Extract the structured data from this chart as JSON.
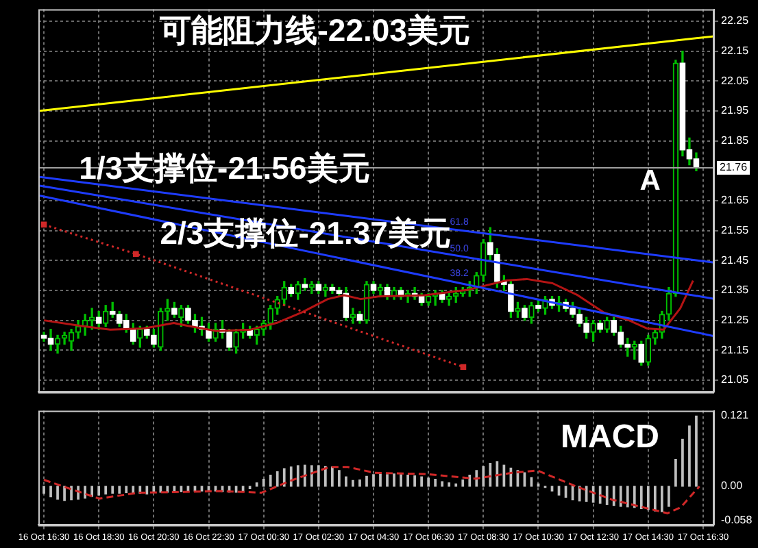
{
  "chart_data": [
    {
      "type": "candlestick",
      "xlim": [
        "--10-16T16:18",
        "--10-17T16:54"
      ],
      "ylim": [
        21.01,
        22.29
      ],
      "xticks": [
        {
          "value": "--10-16T16:30",
          "label": null
        },
        {
          "value": "--10-16T18:30",
          "label": null
        },
        {
          "value": "--10-16T20:30",
          "label": null
        },
        {
          "value": "--10-16T22:30",
          "label": null
        },
        {
          "value": "--10-17T00:30",
          "label": null
        },
        {
          "value": "--10-17T02:30",
          "label": null
        },
        {
          "value": "--10-17T04:30",
          "label": null
        },
        {
          "value": "--10-17T06:30",
          "label": null
        },
        {
          "value": "--10-17T08:30",
          "label": null
        },
        {
          "value": "--10-17T10:30",
          "label": null
        },
        {
          "value": "--10-17T12:30",
          "label": null
        },
        {
          "value": "--10-17T14:30",
          "label": null
        },
        {
          "value": "--10-17T16:30",
          "label": null
        }
      ],
      "yticks": [
        21.05,
        21.15,
        21.25,
        21.35,
        21.45,
        21.55,
        21.65,
        21.85,
        21.95,
        22.05,
        22.15,
        22.25
      ],
      "tick_labels": "y",
      "grid": true,
      "ref_lines": [
        {
          "axis": "y",
          "value": 21.76,
          "label": "21.76",
          "color": "#a0a0a0"
        }
      ],
      "annotations": [
        "可能阻力线-22.03美元",
        "1/3支撑位-21.56美元",
        "2/3支撑位-21.37美元",
        "A",
        {
          "text": "61.8",
          "x": "--10-17T07:17",
          "y": 21.579
        },
        {
          "text": "50.0",
          "x": "--10-17T07:17",
          "y": 21.49
        },
        {
          "text": "38.2",
          "x": "--10-17T07:17",
          "y": 21.406
        }
      ],
      "series": [
        {
          "color": "#00c000",
          "colors": [
            "#ffffff",
            "#ffffff",
            "#00c000",
            "#00c000",
            "#00c000",
            "#00c000",
            "#00c000",
            "#00c000",
            "#ffffff",
            "#00c000",
            "#ffffff",
            "#ffffff",
            "#ffffff",
            "#ffffff",
            "#00c000",
            "#ffffff",
            "#ffffff",
            "#00c000",
            "#00c000",
            "#ffffff",
            "#00c000",
            "#ffffff",
            "#ffffff",
            "#ffffff",
            "#ffffff",
            "#00c000",
            "#ffffff",
            "#ffffff",
            "#00c000",
            "#00c000",
            "#ffffff",
            "#00c000",
            "#00c000",
            "#00c000",
            "#00c000",
            "#00c000",
            "#ffffff",
            "#00c000",
            "#ffffff",
            "#00c000",
            "#ffffff",
            "#00c000",
            "#ffffff",
            "#ffffff",
            "#ffffff",
            "#00c000",
            "#ffffff",
            "#00c000",
            "#ffffff",
            "#00c000",
            "#ffffff",
            "#00c000",
            "#ffffff",
            "#00c000",
            "#ffffff",
            "#ffffff",
            "#00c000",
            "#00c000",
            "#ffffff",
            "#00c000",
            "#00c000",
            "#00c000",
            "#00c000",
            "#00c000",
            "#00c000",
            "#ffffff",
            "#ffffff",
            "#ffffff",
            "#ffffff",
            "#00c000",
            "#ffffff",
            "#00c000",
            "#ffffff",
            "#00c000",
            "#ffffff",
            "#00c000",
            "#ffffff",
            "#ffffff",
            "#ffffff",
            "#ffffff",
            "#00c000",
            "#ffffff",
            "#00c000",
            "#ffffff",
            "#ffffff",
            "#ffffff",
            "#00c000",
            "#ffffff",
            "#00c000",
            "#00c000",
            "#00c000",
            "#00c000",
            "#00c000",
            "#ffffff",
            "#ffffff",
            "#ffffff"
          ],
          "x": [
            "--10-16T16:30",
            "--10-16T16:45",
            "--10-16T17:00",
            "--10-16T17:15",
            "--10-16T17:30",
            "--10-16T17:45",
            "--10-16T18:00",
            "--10-16T18:15",
            "--10-16T18:30",
            "--10-16T18:45",
            "--10-16T19:00",
            "--10-16T19:15",
            "--10-16T19:30",
            "--10-16T19:45",
            "--10-16T20:00",
            "--10-16T20:15",
            "--10-16T20:30",
            "--10-16T20:45",
            "--10-16T21:00",
            "--10-16T21:15",
            "--10-16T21:30",
            "--10-16T21:45",
            "--10-16T22:00",
            "--10-16T22:15",
            "--10-16T22:30",
            "--10-16T22:45",
            "--10-16T23:00",
            "--10-16T23:15",
            "--10-16T23:30",
            "--10-16T23:45",
            "--10-17T00:00",
            "--10-17T00:15",
            "--10-17T00:30",
            "--10-17T00:45",
            "--10-17T01:00",
            "--10-17T01:15",
            "--10-17T01:30",
            "--10-17T01:45",
            "--10-17T02:00",
            "--10-17T02:15",
            "--10-17T02:30",
            "--10-17T02:45",
            "--10-17T03:00",
            "--10-17T03:15",
            "--10-17T03:30",
            "--10-17T03:45",
            "--10-17T04:00",
            "--10-17T04:15",
            "--10-17T04:30",
            "--10-17T04:45",
            "--10-17T05:00",
            "--10-17T05:15",
            "--10-17T05:30",
            "--10-17T05:45",
            "--10-17T06:00",
            "--10-17T06:15",
            "--10-17T06:30",
            "--10-17T06:45",
            "--10-17T07:00",
            "--10-17T07:15",
            "--10-17T07:30",
            "--10-17T07:45",
            "--10-17T08:00",
            "--10-17T08:15",
            "--10-17T08:30",
            "--10-17T08:45",
            "--10-17T09:00",
            "--10-17T09:15",
            "--10-17T09:30",
            "--10-17T09:45",
            "--10-17T10:00",
            "--10-17T10:15",
            "--10-17T10:30",
            "--10-17T10:45",
            "--10-17T11:00",
            "--10-17T11:15",
            "--10-17T11:30",
            "--10-17T11:45",
            "--10-17T12:00",
            "--10-17T12:15",
            "--10-17T12:30",
            "--10-17T12:45",
            "--10-17T13:00",
            "--10-17T13:15",
            "--10-17T13:30",
            "--10-17T13:45",
            "--10-17T14:00",
            "--10-17T14:15",
            "--10-17T14:30",
            "--10-17T14:45",
            "--10-17T15:00",
            "--10-17T15:15",
            "--10-17T15:30",
            "--10-17T15:45",
            "--10-17T16:00",
            "--10-17T16:15"
          ],
          "ohlc": [
            [
              21.2,
              21.21,
              21.18,
              21.19
            ],
            [
              21.19,
              21.22,
              21.15,
              21.17
            ],
            [
              21.17,
              21.2,
              21.14,
              21.19
            ],
            [
              21.19,
              21.21,
              21.17,
              21.2
            ],
            [
              21.18,
              21.22,
              21.15,
              21.21
            ],
            [
              21.21,
              21.25,
              21.19,
              21.23
            ],
            [
              21.23,
              21.27,
              21.2,
              21.25
            ],
            [
              21.25,
              21.29,
              21.22,
              21.26
            ],
            [
              21.26,
              21.28,
              21.22,
              21.24
            ],
            [
              21.24,
              21.3,
              21.23,
              21.28
            ],
            [
              21.28,
              21.31,
              21.26,
              21.27
            ],
            [
              21.27,
              21.28,
              21.23,
              21.24
            ],
            [
              21.25,
              21.27,
              21.21,
              21.22
            ],
            [
              21.22,
              21.24,
              21.17,
              21.18
            ],
            [
              21.19,
              21.23,
              21.16,
              21.22
            ],
            [
              21.22,
              21.23,
              21.19,
              21.2
            ],
            [
              21.2,
              21.22,
              21.16,
              21.17
            ],
            [
              21.16,
              21.29,
              21.15,
              21.28
            ],
            [
              21.28,
              21.32,
              21.25,
              21.29
            ],
            [
              21.29,
              21.31,
              21.26,
              21.27
            ],
            [
              21.26,
              21.3,
              21.23,
              21.29
            ],
            [
              21.29,
              21.3,
              21.24,
              21.25
            ],
            [
              21.25,
              21.27,
              21.21,
              21.23
            ],
            [
              21.23,
              21.26,
              21.2,
              21.22
            ],
            [
              21.22,
              21.24,
              21.18,
              21.19
            ],
            [
              21.19,
              21.24,
              21.18,
              21.22
            ],
            [
              21.22,
              21.25,
              21.19,
              21.21
            ],
            [
              21.21,
              21.22,
              21.15,
              21.16
            ],
            [
              21.16,
              21.22,
              21.14,
              21.21
            ],
            [
              21.21,
              21.24,
              21.19,
              21.22
            ],
            [
              21.22,
              21.23,
              21.19,
              21.2
            ],
            [
              21.2,
              21.23,
              21.17,
              21.22
            ],
            [
              21.22,
              21.25,
              21.2,
              21.24
            ],
            [
              21.24,
              21.3,
              21.22,
              21.29
            ],
            [
              21.29,
              21.33,
              21.27,
              21.32
            ],
            [
              21.32,
              21.38,
              21.3,
              21.36
            ],
            [
              21.36,
              21.37,
              21.33,
              21.34
            ],
            [
              21.34,
              21.38,
              21.32,
              21.37
            ],
            [
              21.37,
              21.39,
              21.35,
              21.36
            ],
            [
              21.36,
              21.38,
              21.34,
              21.37
            ],
            [
              21.37,
              21.38,
              21.34,
              21.35
            ],
            [
              21.35,
              21.37,
              21.33,
              21.36
            ],
            [
              21.36,
              21.37,
              21.34,
              21.35
            ],
            [
              21.35,
              21.36,
              21.33,
              21.34
            ],
            [
              21.34,
              21.36,
              21.25,
              21.26
            ],
            [
              21.26,
              21.29,
              21.24,
              21.27
            ],
            [
              21.27,
              21.28,
              21.24,
              21.25
            ],
            [
              21.25,
              21.38,
              21.24,
              21.37
            ],
            [
              21.37,
              21.38,
              21.34,
              21.35
            ],
            [
              21.35,
              21.37,
              21.33,
              21.36
            ],
            [
              21.36,
              21.37,
              21.32,
              21.33
            ],
            [
              21.33,
              21.36,
              21.32,
              21.35
            ],
            [
              21.35,
              21.36,
              21.32,
              21.33
            ],
            [
              21.33,
              21.35,
              21.31,
              21.34
            ],
            [
              21.34,
              21.36,
              21.32,
              21.33
            ],
            [
              21.33,
              21.34,
              21.3,
              21.31
            ],
            [
              21.31,
              21.34,
              21.3,
              21.33
            ],
            [
              21.33,
              21.35,
              21.3,
              21.34
            ],
            [
              21.34,
              21.35,
              21.31,
              21.32
            ],
            [
              21.32,
              21.34,
              21.3,
              21.33
            ],
            [
              21.33,
              21.36,
              21.31,
              21.34
            ],
            [
              21.34,
              21.36,
              21.33,
              21.35
            ],
            [
              21.35,
              21.38,
              21.33,
              21.36
            ],
            [
              21.36,
              21.41,
              21.34,
              21.4
            ],
            [
              21.4,
              21.52,
              21.38,
              21.51
            ],
            [
              21.51,
              21.56,
              21.45,
              21.47
            ],
            [
              21.47,
              21.49,
              21.36,
              21.38
            ],
            [
              21.38,
              21.4,
              21.35,
              21.37
            ],
            [
              21.37,
              21.38,
              21.26,
              21.28
            ],
            [
              21.28,
              21.31,
              21.26,
              21.29
            ],
            [
              21.29,
              21.3,
              21.25,
              21.26
            ],
            [
              21.26,
              21.31,
              21.24,
              21.3
            ],
            [
              21.3,
              21.32,
              21.28,
              21.29
            ],
            [
              21.29,
              21.33,
              21.27,
              21.32
            ],
            [
              21.32,
              21.33,
              21.29,
              21.3
            ],
            [
              21.3,
              21.33,
              21.28,
              21.31
            ],
            [
              21.31,
              21.32,
              21.28,
              21.29
            ],
            [
              21.29,
              21.31,
              21.26,
              21.27
            ],
            [
              21.27,
              21.29,
              21.23,
              21.24
            ],
            [
              21.24,
              21.26,
              21.19,
              21.21
            ],
            [
              21.21,
              21.25,
              21.18,
              21.24
            ],
            [
              21.24,
              21.25,
              21.21,
              21.22
            ],
            [
              21.22,
              21.26,
              21.21,
              21.25
            ],
            [
              21.25,
              21.26,
              21.2,
              21.21
            ],
            [
              21.21,
              21.23,
              21.16,
              21.17
            ],
            [
              21.17,
              21.19,
              21.13,
              21.16
            ],
            [
              21.16,
              21.18,
              21.12,
              21.17
            ],
            [
              21.17,
              21.18,
              21.1,
              21.11
            ],
            [
              21.11,
              21.2,
              21.1,
              21.19
            ],
            [
              21.19,
              21.22,
              21.17,
              21.21
            ],
            [
              21.21,
              21.28,
              21.19,
              21.27
            ],
            [
              21.27,
              21.36,
              21.25,
              21.34
            ],
            [
              21.34,
              22.12,
              21.33,
              22.11
            ],
            [
              22.11,
              22.15,
              21.8,
              21.82
            ],
            [
              21.82,
              21.86,
              21.77,
              21.79
            ],
            [
              21.79,
              21.81,
              21.75,
              21.76
            ]
          ]
        },
        {
          "type": "line",
          "color": "#ffff00",
          "x": [
            "--10-16T16:18",
            "--10-17T16:54"
          ],
          "values": [
            21.95,
            22.2
          ]
        },
        {
          "type": "line",
          "color": "#1e3cff",
          "x": [
            "--10-16T16:18",
            "--10-17T16:54"
          ],
          "values": [
            21.73,
            21.443
          ]
        },
        {
          "type": "line",
          "color": "#1e3cff",
          "x": [
            "--10-16T16:18",
            "--10-17T16:54"
          ],
          "values": [
            21.701,
            21.322
          ]
        },
        {
          "type": "line",
          "color": "#1e3cff",
          "x": [
            "--10-16T16:18",
            "--10-17T16:54"
          ],
          "values": [
            21.668,
            21.197
          ]
        },
        {
          "type": "line",
          "color": "#d02828",
          "line_style": "dotted",
          "marker": "square",
          "x": [
            "--10-16T16:30",
            "--10-16T19:51",
            "--10-17T07:46"
          ],
          "values": [
            21.57,
            21.472,
            21.094
          ]
        },
        {
          "type": "line",
          "color": "#b41414",
          "x": [
            "--10-16T16:30",
            "--10-16T17:48",
            "--10-16T18:55",
            "--10-16T20:08",
            "--10-16T21:14",
            "--10-16T21:43",
            "--10-16T22:47",
            "--10-17T00:02",
            "--10-17T00:58",
            "--10-17T01:54",
            "--10-17T02:50",
            "--10-17T03:26",
            "--10-17T04:02",
            "--10-17T04:41",
            "--10-17T06:22",
            "--10-17T07:56",
            "--10-17T09:20",
            "--10-17T10:05",
            "--10-17T11:01",
            "--10-17T11:56",
            "--10-17T12:52",
            "--10-17T13:48",
            "--10-17T14:27",
            "--10-17T15:04",
            "--10-17T15:40",
            "--10-17T16:08"
          ],
          "values": [
            21.25,
            21.232,
            21.219,
            21.223,
            21.241,
            21.232,
            21.214,
            21.219,
            21.241,
            21.277,
            21.321,
            21.334,
            21.321,
            21.33,
            21.334,
            21.352,
            21.383,
            21.388,
            21.374,
            21.334,
            21.277,
            21.25,
            21.223,
            21.219,
            21.29,
            21.383
          ]
        }
      ]
    },
    {
      "type": "bar",
      "title": "MACD",
      "xlim": [
        "--10-16T16:18",
        "--10-17T16:54"
      ],
      "ylim": [
        -0.066,
        0.129
      ],
      "xticks": [
        {
          "value": "--10-16T16:30",
          "label": "16 Oct 16:30"
        },
        {
          "value": "--10-16T18:30",
          "label": "16 Oct 18:30"
        },
        {
          "value": "--10-16T20:30",
          "label": "16 Oct 20:30"
        },
        {
          "value": "--10-16T22:30",
          "label": "16 Oct 22:30"
        },
        {
          "value": "--10-17T00:30",
          "label": "17 Oct 00:30"
        },
        {
          "value": "--10-17T02:30",
          "label": "17 Oct 02:30"
        },
        {
          "value": "--10-17T04:30",
          "label": "17 Oct 04:30"
        },
        {
          "value": "--10-17T06:30",
          "label": "17 Oct 06:30"
        },
        {
          "value": "--10-17T08:30",
          "label": "17 Oct 08:30"
        },
        {
          "value": "--10-17T10:30",
          "label": "17 Oct 10:30"
        },
        {
          "value": "--10-17T12:30",
          "label": "17 Oct 12:30"
        },
        {
          "value": "--10-17T14:30",
          "label": "17 Oct 14:30"
        },
        {
          "value": "--10-17T16:30",
          "label": "17 Oct 16:30"
        }
      ],
      "yticks": [
        0.121,
        {
          "value": 0,
          "label": "0.00"
        },
        -0.058
      ],
      "grid": "x",
      "series": [
        {
          "color": "#c0c0c0",
          "x": [
            "--10-16T16:30",
            "--10-16T16:45",
            "--10-16T17:00",
            "--10-16T17:15",
            "--10-16T17:30",
            "--10-16T17:45",
            "--10-16T18:00",
            "--10-16T18:15",
            "--10-16T18:30",
            "--10-16T18:45",
            "--10-16T19:00",
            "--10-16T19:15",
            "--10-16T19:30",
            "--10-16T19:45",
            "--10-16T20:00",
            "--10-16T20:15",
            "--10-16T20:30",
            "--10-16T20:45",
            "--10-16T21:00",
            "--10-16T21:15",
            "--10-16T21:30",
            "--10-16T21:45",
            "--10-16T22:00",
            "--10-16T22:15",
            "--10-16T22:30",
            "--10-16T22:45",
            "--10-16T23:00",
            "--10-16T23:15",
            "--10-16T23:30",
            "--10-16T23:45",
            "--10-17T00:00",
            "--10-17T00:15",
            "--10-17T00:30",
            "--10-17T00:45",
            "--10-17T01:00",
            "--10-17T01:15",
            "--10-17T01:30",
            "--10-17T01:45",
            "--10-17T02:00",
            "--10-17T02:15",
            "--10-17T02:30",
            "--10-17T02:45",
            "--10-17T03:00",
            "--10-17T03:15",
            "--10-17T03:30",
            "--10-17T03:45",
            "--10-17T04:00",
            "--10-17T04:15",
            "--10-17T04:30",
            "--10-17T04:45",
            "--10-17T05:00",
            "--10-17T05:15",
            "--10-17T05:30",
            "--10-17T05:45",
            "--10-17T06:00",
            "--10-17T06:15",
            "--10-17T06:30",
            "--10-17T06:45",
            "--10-17T07:00",
            "--10-17T07:15",
            "--10-17T07:30",
            "--10-17T07:45",
            "--10-17T08:00",
            "--10-17T08:15",
            "--10-17T08:30",
            "--10-17T08:45",
            "--10-17T09:00",
            "--10-17T09:15",
            "--10-17T09:30",
            "--10-17T09:45",
            "--10-17T10:00",
            "--10-17T10:15",
            "--10-17T10:30",
            "--10-17T10:45",
            "--10-17T11:00",
            "--10-17T11:15",
            "--10-17T11:30",
            "--10-17T11:45",
            "--10-17T12:00",
            "--10-17T12:15",
            "--10-17T12:30",
            "--10-17T12:45",
            "--10-17T13:00",
            "--10-17T13:15",
            "--10-17T13:30",
            "--10-17T13:45",
            "--10-17T14:00",
            "--10-17T14:15",
            "--10-17T14:30",
            "--10-17T14:45",
            "--10-17T15:00",
            "--10-17T15:15",
            "--10-17T15:30",
            "--10-17T15:45",
            "--10-17T16:00",
            "--10-17T16:15"
          ],
          "values": [
            -0.012,
            -0.018,
            -0.022,
            -0.024,
            -0.023,
            -0.022,
            -0.02,
            -0.017,
            -0.015,
            -0.013,
            -0.012,
            -0.012,
            -0.011,
            -0.012,
            -0.012,
            -0.013,
            -0.011,
            -0.01,
            -0.01,
            -0.009,
            -0.009,
            -0.009,
            -0.008,
            -0.008,
            -0.008,
            -0.008,
            -0.009,
            -0.01,
            -0.01,
            -0.009,
            -0.004,
            0.006,
            0.012,
            0.019,
            0.025,
            0.03,
            0.033,
            0.035,
            0.036,
            0.035,
            0.035,
            0.034,
            0.033,
            0.027,
            0.016,
            0.01,
            0.011,
            0.017,
            0.02,
            0.021,
            0.02,
            0.021,
            0.02,
            0.019,
            0.018,
            0.016,
            0.014,
            0.012,
            0.008,
            0.006,
            0.004,
            0.011,
            0.019,
            0.027,
            0.034,
            0.039,
            0.042,
            0.036,
            0.031,
            0.027,
            0.023,
            0.015,
            0.004,
            -0.002,
            -0.008,
            -0.015,
            -0.019,
            -0.023,
            -0.025,
            -0.026,
            -0.027,
            -0.029,
            -0.031,
            -0.033,
            -0.034,
            -0.035,
            -0.036,
            -0.038,
            -0.04,
            -0.042,
            -0.043,
            -0.034,
            0.046,
            0.08,
            0.103,
            0.12
          ]
        },
        {
          "type": "line",
          "color": "#d02828",
          "line_style": "dashed",
          "x": [
            "--10-16T16:30",
            "--10-16T18:31",
            "--10-16T19:55",
            "--10-16T21:14",
            "--10-16T22:55",
            "--10-17T00:25",
            "--10-17T01:34",
            "--10-17T02:54",
            "--10-17T03:34",
            "--10-17T04:33",
            "--10-17T06:23",
            "--10-17T08:13",
            "--10-17T09:32",
            "--10-17T10:28",
            "--10-17T11:52",
            "--10-17T13:12",
            "--10-17T15:12",
            "--10-17T15:41",
            "--10-17T16:22"
          ],
          "values": [
            0.011,
            -0.021,
            -0.011,
            -0.01,
            -0.008,
            -0.011,
            0.011,
            0.033,
            0.033,
            0.023,
            0.021,
            0.013,
            0.023,
            0.027,
            0,
            -0.023,
            -0.046,
            -0.036,
            0
          ]
        }
      ]
    }
  ]
}
